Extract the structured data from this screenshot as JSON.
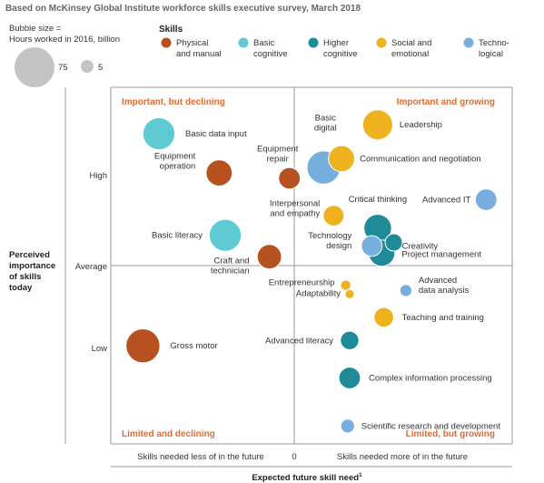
{
  "header": {
    "subtitle": "Based on McKinsey Global Institute workforce skills executive survey, March 2018"
  },
  "size_legend": {
    "title_line1": "Bubble size =",
    "title_line2": "Hours worked in 2016, billion",
    "large_label": "75",
    "small_label": "5",
    "large_value": 75,
    "small_value": 5
  },
  "skills_legend": {
    "title": "Skills",
    "items": [
      {
        "line1": "Physical",
        "line2": "and manual",
        "color": "#B5521F"
      },
      {
        "line1": "Basic",
        "line2": "cognitive",
        "color": "#5ECBD3"
      },
      {
        "line1": "Higher",
        "line2": "cognitive",
        "color": "#1F8A98"
      },
      {
        "line1": "Social and",
        "line2": "emotional",
        "color": "#EEB21E"
      },
      {
        "line1": "Techno-",
        "line2": "logical",
        "color": "#78AEDD"
      }
    ]
  },
  "chart_data": {
    "type": "scatter",
    "xlabel": "Expected future skill need",
    "xlabel_sup": "1",
    "ylabel_lines": [
      "Perceived",
      "importance",
      "of skills",
      "today"
    ],
    "y_ticks": [
      "High",
      "Average",
      "Low"
    ],
    "x_ticks": {
      "left": "Skills needed less of in the future",
      "center": "0",
      "right": "Skills needed more of in the future"
    },
    "quadrants": {
      "top_left": "Important, but declining",
      "top_right": "Important and growing",
      "bottom_left": "Limited and declining",
      "bottom_right": "Limited, but growing"
    },
    "xlim": [
      -1,
      1
    ],
    "ylim": [
      -1,
      1
    ],
    "points": [
      {
        "label": [
          "Basic data input"
        ],
        "category": "Basic cognitive",
        "x": -0.76,
        "y": 0.74,
        "size": 48
      },
      {
        "label": [
          "Equipment",
          "operation"
        ],
        "category": "Physical and manual",
        "x": -0.46,
        "y": 0.52,
        "size": 32
      },
      {
        "label": [
          "Equipment",
          "repair"
        ],
        "category": "Physical and manual",
        "x": -0.11,
        "y": 0.49,
        "size": 22
      },
      {
        "label": [
          "Basic literacy"
        ],
        "category": "Basic cognitive",
        "x": -0.43,
        "y": 0.17,
        "size": 48
      },
      {
        "label": [
          "Craft and",
          "technician"
        ],
        "category": "Physical and manual",
        "x": -0.21,
        "y": 0.05,
        "size": 28
      },
      {
        "label": [
          "Gross motor"
        ],
        "category": "Physical and manual",
        "x": -0.84,
        "y": -0.45,
        "size": 54
      },
      {
        "label": [
          "Basic",
          "digital"
        ],
        "category": "Technological",
        "x": 0.06,
        "y": 0.55,
        "size": 52
      },
      {
        "label": [
          "Leadership"
        ],
        "category": "Social and emotional",
        "x": 0.33,
        "y": 0.79,
        "size": 42
      },
      {
        "label": [
          "Communication and negotiation"
        ],
        "category": "Social and emotional",
        "x": 0.15,
        "y": 0.6,
        "size": 32
      },
      {
        "label": [
          "Interpersonal",
          "and empathy"
        ],
        "category": "Social and emotional",
        "x": 0.11,
        "y": 0.28,
        "size": 20
      },
      {
        "label": [
          "Critical thinking"
        ],
        "category": "Higher cognitive",
        "x": 0.33,
        "y": 0.21,
        "size": 36
      },
      {
        "label": [
          "Advanced IT"
        ],
        "category": "Technological",
        "x": 0.87,
        "y": 0.37,
        "size": 22
      },
      {
        "label": [
          "Creativity"
        ],
        "category": "Higher cognitive",
        "x": 0.41,
        "y": 0.13,
        "size": 14
      },
      {
        "label": [
          "Project management"
        ],
        "category": "Higher cognitive",
        "x": 0.35,
        "y": 0.07,
        "size": 32
      },
      {
        "label": [
          "Technology",
          "design"
        ],
        "category": "Technological",
        "x": 0.3,
        "y": 0.11,
        "size": 20
      },
      {
        "label": [
          "Entrepreneurship"
        ],
        "category": "Social and emotional",
        "x": 0.17,
        "y": -0.11,
        "size": 5
      },
      {
        "label": [
          "Adaptability"
        ],
        "category": "Social and emotional",
        "x": 0.19,
        "y": -0.16,
        "size": 4
      },
      {
        "label": [
          "Advanced",
          "data analysis"
        ],
        "category": "Technological",
        "x": 0.47,
        "y": -0.14,
        "size": 7
      },
      {
        "label": [
          "Teaching and training"
        ],
        "category": "Social and emotional",
        "x": 0.36,
        "y": -0.29,
        "size": 18
      },
      {
        "label": [
          "Advanced literacy"
        ],
        "category": "Higher cognitive",
        "x": 0.19,
        "y": -0.42,
        "size": 16
      },
      {
        "label": [
          "Complex information processing"
        ],
        "category": "Higher cognitive",
        "x": 0.19,
        "y": -0.63,
        "size": 22
      },
      {
        "label": [
          "Scientific research and development"
        ],
        "category": "Technological",
        "x": 0.18,
        "y": -0.9,
        "size": 9
      }
    ]
  }
}
